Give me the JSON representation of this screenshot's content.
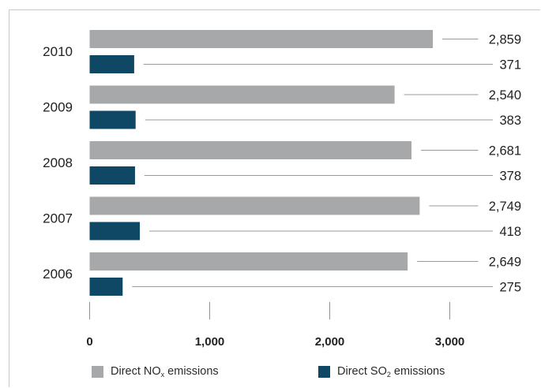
{
  "chart_data": {
    "type": "bar",
    "orientation": "horizontal",
    "categories": [
      "2010",
      "2009",
      "2008",
      "2007",
      "2006"
    ],
    "series": [
      {
        "name": "Direct NOx emissions",
        "color": "#a7a8aa",
        "values": [
          2859,
          2540,
          2681,
          2749,
          2649
        ],
        "labels": [
          "2,859",
          "2,540",
          "2,681",
          "2,749",
          "2,649"
        ]
      },
      {
        "name": "Direct SO2 emissions",
        "color": "#0f4865",
        "values": [
          371,
          383,
          378,
          418,
          275
        ],
        "labels": [
          "371",
          "383",
          "378",
          "418",
          "275"
        ]
      }
    ],
    "xlim": [
      0,
      3000
    ],
    "xticks": [
      0,
      1000,
      2000,
      3000
    ],
    "xtick_labels": [
      "0",
      "1,000",
      "2,000",
      "3,000"
    ],
    "grid": false,
    "legend_position": "bottom"
  },
  "legend": {
    "nox": {
      "text_before": "Direct NO",
      "subscript": "x",
      "text_after": " emissions",
      "color": "#a7a8aa"
    },
    "so2": {
      "text_before": "Direct SO",
      "subscript": "2",
      "text_after": " emissions",
      "color": "#0f4865"
    }
  }
}
